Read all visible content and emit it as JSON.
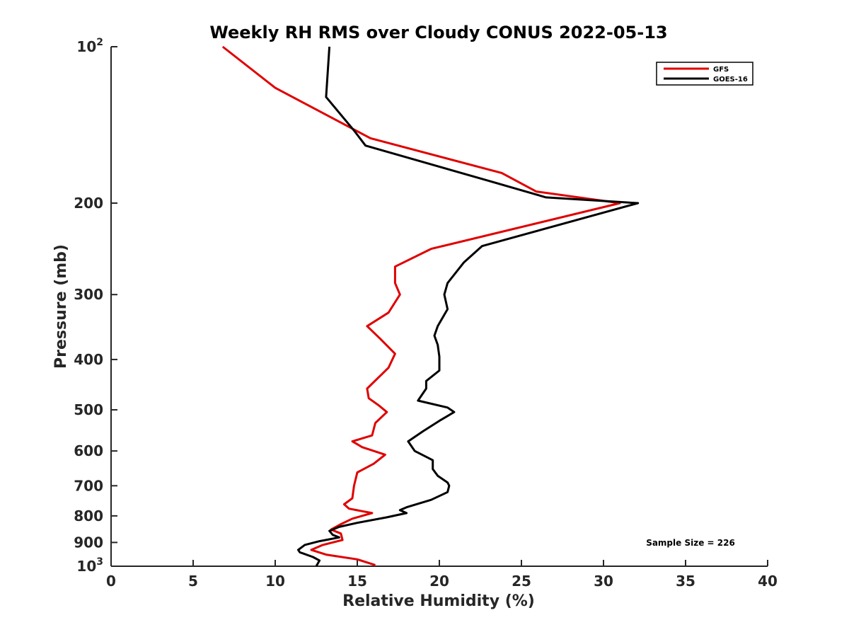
{
  "chart_data": {
    "type": "line",
    "title": "Weekly RH RMS over Cloudy CONUS 2022-05-13",
    "xlabel": "Relative Humidity (%)",
    "ylabel": "Pressure (mb)",
    "xlim": [
      0,
      40
    ],
    "ylim": [
      100,
      1000
    ],
    "y_scale": "log",
    "y_reversed": true,
    "grid": false,
    "legend_position": "top-right",
    "x_ticks": [
      "0",
      "5",
      "10",
      "15",
      "20",
      "25",
      "30",
      "35",
      "40"
    ],
    "y_ticks": [
      {
        "value": 100,
        "label": "10",
        "sup": "2"
      },
      {
        "value": 200,
        "label": "200",
        "sup": ""
      },
      {
        "value": 300,
        "label": "300",
        "sup": ""
      },
      {
        "value": 400,
        "label": "400",
        "sup": ""
      },
      {
        "value": 500,
        "label": "500",
        "sup": ""
      },
      {
        "value": 600,
        "label": "600",
        "sup": ""
      },
      {
        "value": 700,
        "label": "700",
        "sup": ""
      },
      {
        "value": 800,
        "label": "800",
        "sup": ""
      },
      {
        "value": 900,
        "label": "900",
        "sup": ""
      },
      {
        "value": 1000,
        "label": "10",
        "sup": "3"
      }
    ],
    "series": [
      {
        "name": "GFS",
        "color": "#e00000",
        "points": [
          [
            6.8,
            100
          ],
          [
            10.0,
            120
          ],
          [
            15.8,
            150
          ],
          [
            23.8,
            175
          ],
          [
            25.9,
            190
          ],
          [
            31.0,
            200
          ],
          [
            19.5,
            245
          ],
          [
            17.3,
            265
          ],
          [
            17.3,
            285
          ],
          [
            17.6,
            300
          ],
          [
            16.9,
            325
          ],
          [
            15.6,
            345
          ],
          [
            16.4,
            365
          ],
          [
            17.3,
            390
          ],
          [
            16.9,
            415
          ],
          [
            15.6,
            455
          ],
          [
            15.7,
            475
          ],
          [
            16.3,
            490
          ],
          [
            16.8,
            505
          ],
          [
            16.1,
            530
          ],
          [
            15.9,
            560
          ],
          [
            14.7,
            575
          ],
          [
            15.3,
            590
          ],
          [
            16.7,
            610
          ],
          [
            16.0,
            635
          ],
          [
            15.0,
            660
          ],
          [
            14.8,
            700
          ],
          [
            14.7,
            740
          ],
          [
            14.2,
            760
          ],
          [
            14.5,
            775
          ],
          [
            15.9,
            790
          ],
          [
            14.7,
            810
          ],
          [
            14.0,
            830
          ],
          [
            13.4,
            850
          ],
          [
            14.0,
            865
          ],
          [
            14.1,
            890
          ],
          [
            12.9,
            910
          ],
          [
            12.2,
            930
          ],
          [
            13.1,
            950
          ],
          [
            15.0,
            970
          ],
          [
            16.1,
            995
          ]
        ]
      },
      {
        "name": "GOES-16",
        "color": "#000000",
        "points": [
          [
            13.3,
            100
          ],
          [
            13.1,
            125
          ],
          [
            14.8,
            145
          ],
          [
            15.5,
            155
          ],
          [
            22.7,
            180
          ],
          [
            26.5,
            195
          ],
          [
            32.1,
            200
          ],
          [
            22.6,
            242
          ],
          [
            21.5,
            260
          ],
          [
            20.5,
            285
          ],
          [
            20.3,
            300
          ],
          [
            20.5,
            320
          ],
          [
            19.9,
            345
          ],
          [
            19.7,
            360
          ],
          [
            19.9,
            375
          ],
          [
            20.0,
            395
          ],
          [
            20.0,
            420
          ],
          [
            19.2,
            440
          ],
          [
            19.2,
            455
          ],
          [
            18.7,
            480
          ],
          [
            20.5,
            495
          ],
          [
            20.9,
            505
          ],
          [
            20.0,
            525
          ],
          [
            19.0,
            550
          ],
          [
            18.1,
            575
          ],
          [
            18.5,
            600
          ],
          [
            19.6,
            625
          ],
          [
            19.6,
            650
          ],
          [
            19.9,
            670
          ],
          [
            20.5,
            690
          ],
          [
            20.6,
            700
          ],
          [
            20.5,
            720
          ],
          [
            19.5,
            745
          ],
          [
            18.0,
            770
          ],
          [
            17.6,
            780
          ],
          [
            18.0,
            790
          ],
          [
            16.8,
            805
          ],
          [
            15.0,
            825
          ],
          [
            13.9,
            840
          ],
          [
            13.3,
            855
          ],
          [
            13.5,
            870
          ],
          [
            13.9,
            880
          ],
          [
            12.7,
            895
          ],
          [
            11.8,
            910
          ],
          [
            11.4,
            930
          ],
          [
            11.5,
            940
          ],
          [
            12.3,
            960
          ],
          [
            12.7,
            975
          ],
          [
            12.5,
            1000
          ]
        ]
      }
    ],
    "annotations": [
      {
        "text": "Sample Size = 226"
      }
    ]
  }
}
